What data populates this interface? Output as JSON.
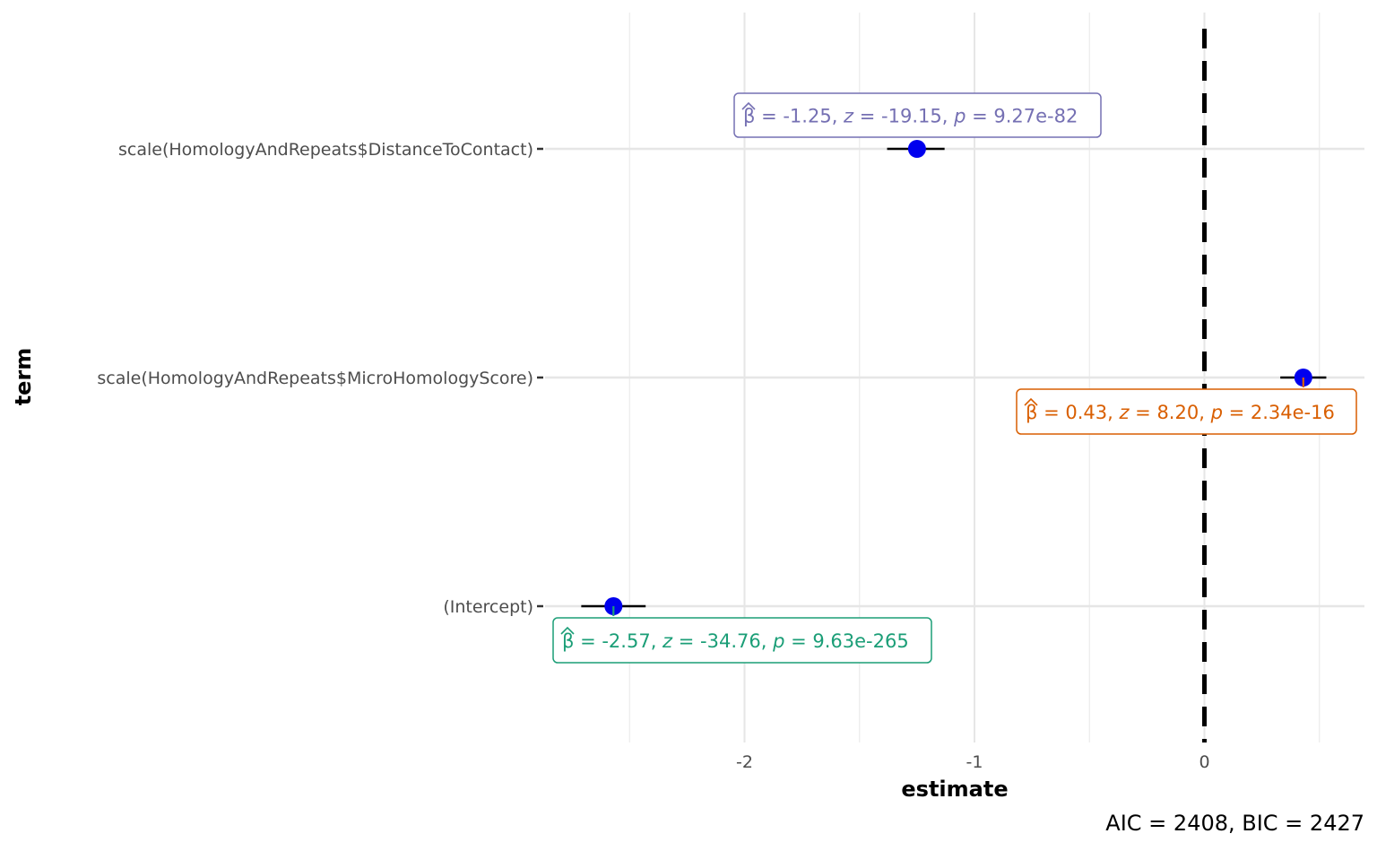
{
  "chart_data": {
    "type": "coefficient-plot",
    "xlabel": "estimate",
    "ylabel": "term",
    "xlim": [
      -3.0,
      0.7
    ],
    "x_ticks": [
      -2,
      -1,
      0
    ],
    "x_tick_labels": [
      "-2",
      "-1",
      "0"
    ],
    "reference_line": 0,
    "caption": "AIC = 2408, BIC = 2427",
    "point_color": "#0000ee",
    "terms": [
      {
        "term": "scale(HomologyAndRepeats$DistanceToContact)",
        "estimate": -1.25,
        "ci_low": -1.38,
        "ci_high": -1.13,
        "beta": "-1.25",
        "z": "-19.15",
        "p": "9.27e-82",
        "color": "#7570b3"
      },
      {
        "term": "scale(HomologyAndRepeats$MicroHomologyScore)",
        "estimate": 0.43,
        "ci_low": 0.33,
        "ci_high": 0.53,
        "beta": "0.43",
        "z": "8.20",
        "p": "2.34e-16",
        "color": "#d95f02"
      },
      {
        "term": "(Intercept)",
        "estimate": -2.57,
        "ci_low": -2.71,
        "ci_high": -2.43,
        "beta": "-2.57",
        "z": "-34.76",
        "p": "9.63e-265",
        "color": "#1b9e77"
      }
    ]
  }
}
